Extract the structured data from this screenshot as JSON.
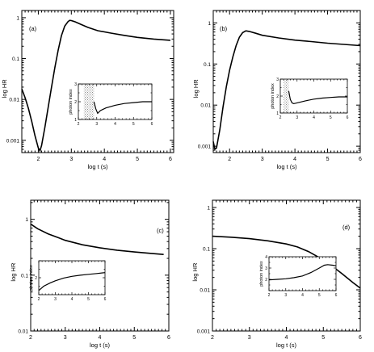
{
  "chart_data": [
    {
      "type": "line",
      "panel_label": "(a)",
      "xlabel": "log t (s)",
      "ylabel": "log HR",
      "xlim": [
        1.5,
        6.1
      ],
      "ylim": [
        0.0005,
        1.5
      ],
      "ylog": true,
      "xticks": [
        2,
        3,
        4,
        5,
        6
      ],
      "yticks": [
        {
          "v": 0.001,
          "label": "0.001"
        },
        {
          "v": 0.01,
          "label": "0.01"
        },
        {
          "v": 0.1,
          "label": "0.1"
        },
        {
          "v": 1,
          "label": "1"
        }
      ],
      "series": [
        {
          "values": [
            [
              1.5,
              0.018
            ],
            [
              1.6,
              0.011
            ],
            [
              1.7,
              0.006
            ],
            [
              1.8,
              0.0029
            ],
            [
              1.9,
              0.0013
            ],
            [
              2.0,
              0.00065
            ],
            [
              2.05,
              0.00055
            ],
            [
              2.1,
              0.00075
            ],
            [
              2.2,
              0.0021
            ],
            [
              2.3,
              0.0065
            ],
            [
              2.4,
              0.02
            ],
            [
              2.5,
              0.06
            ],
            [
              2.6,
              0.16
            ],
            [
              2.7,
              0.36
            ],
            [
              2.8,
              0.62
            ],
            [
              2.9,
              0.8
            ],
            [
              2.95,
              0.86
            ],
            [
              3.0,
              0.85
            ],
            [
              3.1,
              0.8
            ],
            [
              3.3,
              0.68
            ],
            [
              3.5,
              0.58
            ],
            [
              3.8,
              0.48
            ],
            [
              4.2,
              0.42
            ],
            [
              4.6,
              0.37
            ],
            [
              5.0,
              0.33
            ],
            [
              5.5,
              0.3
            ],
            [
              6.0,
              0.28
            ]
          ]
        }
      ],
      "inset": {
        "ylabel": "photon index",
        "xlim": [
          2,
          6
        ],
        "ylim": [
          1,
          3
        ],
        "xticks": [
          2,
          3,
          4,
          5,
          6
        ],
        "yticks": [
          1,
          2,
          3
        ],
        "shade": [
          2.3,
          2.85
        ],
        "values": [
          [
            2.85,
            2.0
          ],
          [
            2.95,
            1.6
          ],
          [
            3.05,
            1.35
          ],
          [
            3.2,
            1.5
          ],
          [
            3.5,
            1.65
          ],
          [
            4.0,
            1.8
          ],
          [
            4.5,
            1.9
          ],
          [
            5.0,
            1.95
          ],
          [
            5.5,
            2.0
          ],
          [
            6.0,
            2.0
          ]
        ]
      }
    },
    {
      "type": "line",
      "panel_label": "(b)",
      "xlabel": "log t (s)",
      "ylabel": "log HR",
      "xlim": [
        1.5,
        6
      ],
      "ylim": [
        0.0007,
        2
      ],
      "ylog": true,
      "xticks": [
        2,
        3,
        4,
        5,
        6
      ],
      "yticks": [
        {
          "v": 0.001,
          "label": "0.001"
        },
        {
          "v": 0.01,
          "label": "0.01"
        },
        {
          "v": 0.1,
          "label": "0.1"
        },
        {
          "v": 1,
          "label": "1"
        }
      ],
      "series": [
        {
          "values": [
            [
              1.5,
              0.0013
            ],
            [
              1.55,
              0.00085
            ],
            [
              1.6,
              0.0009
            ],
            [
              1.7,
              0.0025
            ],
            [
              1.8,
              0.009
            ],
            [
              1.9,
              0.028
            ],
            [
              2.0,
              0.07
            ],
            [
              2.1,
              0.15
            ],
            [
              2.2,
              0.28
            ],
            [
              2.3,
              0.45
            ],
            [
              2.4,
              0.58
            ],
            [
              2.5,
              0.64
            ],
            [
              2.6,
              0.62
            ],
            [
              2.8,
              0.56
            ],
            [
              3.0,
              0.5
            ],
            [
              3.5,
              0.43
            ],
            [
              4.0,
              0.38
            ],
            [
              4.5,
              0.35
            ],
            [
              5.0,
              0.32
            ],
            [
              5.5,
              0.3
            ],
            [
              6.0,
              0.28
            ]
          ]
        }
      ],
      "inset": {
        "ylabel": "photon index",
        "xlim": [
          2,
          6
        ],
        "ylim": [
          1,
          3
        ],
        "xticks": [
          2,
          3,
          4,
          5,
          6
        ],
        "yticks": [
          1,
          2,
          3
        ],
        "shade": [
          2.2,
          2.5
        ],
        "values": [
          [
            2.5,
            2.3
          ],
          [
            2.6,
            1.8
          ],
          [
            2.7,
            1.6
          ],
          [
            2.8,
            1.55
          ],
          [
            3.0,
            1.6
          ],
          [
            3.5,
            1.72
          ],
          [
            4.0,
            1.82
          ],
          [
            4.5,
            1.88
          ],
          [
            5.0,
            1.92
          ],
          [
            5.5,
            1.95
          ],
          [
            6.0,
            1.95
          ]
        ]
      }
    },
    {
      "type": "line",
      "panel_label": "(c)",
      "xlabel": "log t (s)",
      "ylabel": "log HR",
      "xlim": [
        2,
        6
      ],
      "ylim": [
        0.01,
        2.2
      ],
      "ylog": true,
      "xticks": [
        2,
        3,
        4,
        5,
        6
      ],
      "yticks": [
        {
          "v": 0.01,
          "label": "0.01"
        },
        {
          "v": 0.1,
          "label": "0.1"
        },
        {
          "v": 1,
          "label": "1"
        }
      ],
      "series": [
        {
          "values": [
            [
              2.0,
              0.82
            ],
            [
              2.2,
              0.68
            ],
            [
              2.5,
              0.55
            ],
            [
              2.8,
              0.47
            ],
            [
              3.0,
              0.42
            ],
            [
              3.5,
              0.35
            ],
            [
              4.0,
              0.31
            ],
            [
              4.5,
              0.28
            ],
            [
              5.0,
              0.26
            ],
            [
              5.5,
              0.245
            ],
            [
              5.85,
              0.235
            ]
          ]
        }
      ],
      "inset": {
        "ylabel": "photon index",
        "xlim": [
          2,
          6
        ],
        "ylim": [
          1,
          3
        ],
        "xticks": [
          2,
          3,
          4,
          5,
          6
        ],
        "yticks": [
          2
        ],
        "shade": null,
        "values": [
          [
            2.0,
            1.25
          ],
          [
            2.3,
            1.5
          ],
          [
            2.7,
            1.7
          ],
          [
            3.0,
            1.82
          ],
          [
            3.5,
            1.98
          ],
          [
            4.0,
            2.08
          ],
          [
            4.5,
            2.15
          ],
          [
            5.0,
            2.2
          ],
          [
            5.5,
            2.25
          ],
          [
            6.0,
            2.3
          ]
        ]
      }
    },
    {
      "type": "line",
      "panel_label": "(d)",
      "xlabel": "log t (s)",
      "ylabel": "log HR",
      "xlim": [
        2,
        6
      ],
      "ylim": [
        0.001,
        1.5
      ],
      "ylog": true,
      "xticks": [
        2,
        3,
        4,
        5,
        6
      ],
      "yticks": [
        {
          "v": 0.001,
          "label": "0.001"
        },
        {
          "v": 0.01,
          "label": "0.01"
        },
        {
          "v": 0.1,
          "label": "0.1"
        },
        {
          "v": 1,
          "label": "1"
        }
      ],
      "series": [
        {
          "values": [
            [
              2.0,
              0.2
            ],
            [
              2.5,
              0.19
            ],
            [
              3.0,
              0.175
            ],
            [
              3.5,
              0.155
            ],
            [
              4.0,
              0.13
            ],
            [
              4.3,
              0.11
            ],
            [
              4.6,
              0.085
            ],
            [
              4.9,
              0.06
            ],
            [
              5.2,
              0.04
            ],
            [
              5.5,
              0.025
            ],
            [
              5.8,
              0.015
            ],
            [
              6.0,
              0.011
            ]
          ]
        }
      ],
      "inset": {
        "ylabel": "photon index",
        "xlim": [
          2,
          6
        ],
        "ylim": [
          1,
          4
        ],
        "xticks": [
          2,
          3,
          4,
          5,
          6
        ],
        "yticks": [
          2,
          3,
          4
        ],
        "shade": null,
        "values": [
          [
            2.0,
            1.95
          ],
          [
            2.5,
            2.0
          ],
          [
            3.0,
            2.05
          ],
          [
            3.5,
            2.15
          ],
          [
            4.0,
            2.3
          ],
          [
            4.5,
            2.6
          ],
          [
            5.0,
            3.0
          ],
          [
            5.3,
            3.25
          ],
          [
            5.5,
            3.3
          ],
          [
            5.8,
            3.25
          ],
          [
            6.0,
            3.2
          ]
        ]
      }
    }
  ]
}
